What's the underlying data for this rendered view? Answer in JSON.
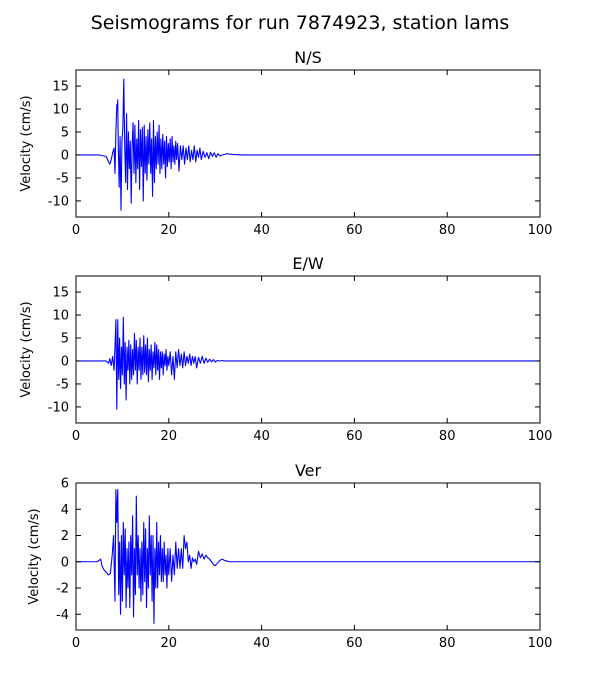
{
  "figure": {
    "title": "Seismograms for run 7874923, station lams"
  },
  "chart_data": [
    {
      "type": "line",
      "title": "N/S",
      "xlabel": "",
      "ylabel": "Velocity (cm/s)",
      "xlim": [
        0,
        100
      ],
      "ylim": [
        -13.5,
        18.5
      ],
      "xticks": [
        0,
        20,
        40,
        60,
        80,
        100
      ],
      "yticks": [
        -10,
        -5,
        0,
        5,
        10,
        15
      ],
      "grid": false,
      "legend": "none",
      "series": [
        {
          "color": "#0000ff",
          "x": [
            0,
            5,
            6.5,
            7,
            7.3,
            7.6,
            7.9,
            8.2,
            8.4,
            8.6,
            8.8,
            8.9,
            9.0,
            9.1,
            9.3,
            9.5,
            9.7,
            9.9,
            10.1,
            10.3,
            10.5,
            10.7,
            10.9,
            11.1,
            11.3,
            11.5,
            11.7,
            11.9,
            12.1,
            12.3,
            12.5,
            12.7,
            12.9,
            13.1,
            13.3,
            13.5,
            13.7,
            13.9,
            14.1,
            14.3,
            14.5,
            14.7,
            14.9,
            15.1,
            15.3,
            15.5,
            15.7,
            15.9,
            16.1,
            16.3,
            16.5,
            16.7,
            16.9,
            17.1,
            17.3,
            17.5,
            17.7,
            17.9,
            18.1,
            18.3,
            18.5,
            18.7,
            18.9,
            19.1,
            19.3,
            19.5,
            19.7,
            19.9,
            20.1,
            20.3,
            20.5,
            20.7,
            20.9,
            21.1,
            21.3,
            21.5,
            21.7,
            21.9,
            22.2,
            22.5,
            22.8,
            23.1,
            23.4,
            23.7,
            24.0,
            24.3,
            24.6,
            24.9,
            25.2,
            25.5,
            25.8,
            26.1,
            26.4,
            26.7,
            27.0,
            27.4,
            27.8,
            28.2,
            28.6,
            29.0,
            29.4,
            29.8,
            30.2,
            30.6,
            31.0,
            31.5,
            32.0,
            32.5,
            33,
            34,
            36,
            38,
            42,
            50,
            100
          ],
          "values": [
            0,
            0,
            -0.3,
            -1.5,
            -2.0,
            -1.0,
            0.5,
            1.5,
            -4.0,
            5.0,
            11.0,
            10.0,
            12.0,
            3.0,
            -7.0,
            4.0,
            -12.0,
            3.0,
            6.0,
            16.5,
            2.0,
            -6.0,
            9.0,
            -7.5,
            5.0,
            -3.0,
            3.0,
            -10.5,
            2.0,
            7.0,
            -4.0,
            6.5,
            -6.0,
            3.5,
            -3.0,
            7.5,
            -7.5,
            5.5,
            -2.5,
            6.0,
            -10.0,
            6.5,
            -4.0,
            4.0,
            -5.5,
            5.5,
            -2.0,
            7.0,
            -4.0,
            3.5,
            -9.0,
            7.5,
            -6.0,
            4.0,
            -3.0,
            5.0,
            -2.0,
            6.5,
            -4.0,
            3.5,
            -3.0,
            4.5,
            -2.0,
            3.0,
            -5.0,
            4.0,
            -2.5,
            2.5,
            -1.5,
            3.5,
            -3.0,
            4.0,
            -1.5,
            2.0,
            -2.0,
            3.0,
            -1.0,
            2.5,
            -3.5,
            2.0,
            -1.0,
            2.0,
            -2.0,
            1.5,
            -1.0,
            2.0,
            -1.5,
            1.0,
            -1.0,
            2.0,
            -1.5,
            1.0,
            -0.5,
            1.5,
            -1.0,
            0.8,
            -0.5,
            0.5,
            -0.8,
            0.6,
            -0.3,
            0.5,
            -0.5,
            0.3,
            -0.2,
            0,
            0.1,
            0.3,
            0.2,
            0.1,
            0,
            0,
            0,
            0,
            0
          ]
        }
      ]
    },
    {
      "type": "line",
      "title": "E/W",
      "xlabel": "",
      "ylabel": "Velocity (cm/s)",
      "xlim": [
        0,
        100
      ],
      "ylim": [
        -13.5,
        18.5
      ],
      "xticks": [
        0,
        20,
        40,
        60,
        80,
        100
      ],
      "yticks": [
        -10,
        -5,
        0,
        5,
        10,
        15
      ],
      "grid": false,
      "legend": "none",
      "series": [
        {
          "color": "#0000ff",
          "x": [
            0,
            6.5,
            7.0,
            7.3,
            7.6,
            7.9,
            8.2,
            8.4,
            8.6,
            8.8,
            9.0,
            9.2,
            9.4,
            9.6,
            9.8,
            10.0,
            10.2,
            10.4,
            10.6,
            10.8,
            11.0,
            11.2,
            11.4,
            11.6,
            11.8,
            12.0,
            12.2,
            12.4,
            12.6,
            12.8,
            13.0,
            13.2,
            13.4,
            13.6,
            13.8,
            14.0,
            14.2,
            14.4,
            14.6,
            14.8,
            15.0,
            15.2,
            15.4,
            15.6,
            15.8,
            16.0,
            16.2,
            16.4,
            16.6,
            16.8,
            17.0,
            17.2,
            17.4,
            17.6,
            17.8,
            18.0,
            18.2,
            18.4,
            18.6,
            18.8,
            19.0,
            19.2,
            19.4,
            19.6,
            19.8,
            20.0,
            20.3,
            20.6,
            20.9,
            21.2,
            21.5,
            21.8,
            22.1,
            22.4,
            22.7,
            23.0,
            23.3,
            23.6,
            23.9,
            24.2,
            24.5,
            24.8,
            25.1,
            25.4,
            25.7,
            26.0,
            26.4,
            26.8,
            27.2,
            27.6,
            28.0,
            28.4,
            28.8,
            29.2,
            29.6,
            30.0,
            30.5,
            31.0,
            31.5,
            32,
            34,
            36,
            40,
            50,
            100
          ],
          "values": [
            0,
            0,
            -0.5,
            0.5,
            -1.0,
            1.0,
            -2.0,
            3.0,
            9.0,
            -10.5,
            9.0,
            -4.0,
            5.0,
            -6.0,
            3.0,
            -3.0,
            9.5,
            -5.0,
            4.0,
            -8.5,
            3.0,
            -2.0,
            4.5,
            -5.0,
            3.5,
            -4.0,
            2.5,
            -3.0,
            6.0,
            -2.0,
            4.5,
            -5.0,
            3.0,
            -2.0,
            5.0,
            -4.0,
            3.0,
            -3.0,
            5.5,
            -2.5,
            3.5,
            -3.0,
            5.0,
            -4.5,
            2.5,
            -2.0,
            3.5,
            -4.0,
            2.0,
            -1.5,
            4.0,
            -3.0,
            3.5,
            -2.0,
            2.5,
            -4.0,
            2.0,
            -1.5,
            2.0,
            -3.0,
            1.5,
            -1.0,
            2.5,
            -2.0,
            1.0,
            -1.0,
            2.0,
            -3.0,
            1.0,
            -4.0,
            2.0,
            -1.5,
            2.5,
            -1.0,
            1.5,
            -1.5,
            2.0,
            -1.0,
            1.0,
            -0.5,
            1.5,
            -1.0,
            1.0,
            -0.5,
            1.0,
            -1.5,
            0.8,
            -0.5,
            1.0,
            -0.5,
            0.6,
            -0.3,
            0.4,
            -0.2,
            0.3,
            -0.2,
            0.1,
            0,
            0.1,
            0,
            0,
            0,
            0,
            0,
            0
          ]
        }
      ]
    },
    {
      "type": "line",
      "title": "Ver",
      "xlabel": "",
      "ylabel": "Velocity (cm/s)",
      "xlim": [
        0,
        100
      ],
      "ylim": [
        -5.2,
        6
      ],
      "xticks": [
        0,
        20,
        40,
        60,
        80,
        100
      ],
      "yticks": [
        -4,
        -2,
        0,
        2,
        4,
        6
      ],
      "grid": false,
      "legend": "none",
      "series": [
        {
          "color": "#0000ff",
          "x": [
            0,
            4.5,
            5.0,
            5.3,
            5.6,
            6.0,
            6.5,
            7.0,
            7.4,
            7.8,
            8.1,
            8.4,
            8.6,
            8.8,
            9.0,
            9.2,
            9.4,
            9.6,
            9.8,
            10.0,
            10.2,
            10.4,
            10.6,
            10.8,
            11.0,
            11.2,
            11.4,
            11.6,
            11.8,
            12.0,
            12.2,
            12.4,
            12.6,
            12.8,
            13.0,
            13.2,
            13.4,
            13.6,
            13.8,
            14.0,
            14.2,
            14.4,
            14.6,
            14.8,
            15.0,
            15.2,
            15.4,
            15.6,
            15.8,
            16.0,
            16.2,
            16.4,
            16.6,
            16.8,
            17.0,
            17.2,
            17.4,
            17.6,
            17.8,
            18.0,
            18.2,
            18.4,
            18.6,
            18.8,
            19.0,
            19.2,
            19.4,
            19.6,
            19.8,
            20.0,
            20.3,
            20.6,
            20.9,
            21.2,
            21.5,
            21.8,
            22.1,
            22.4,
            22.7,
            23.0,
            23.3,
            23.6,
            23.9,
            24.2,
            24.5,
            24.8,
            25.1,
            25.4,
            25.7,
            26.0,
            26.4,
            26.8,
            27.2,
            27.6,
            28.0,
            28.4,
            28.8,
            29.2,
            29.6,
            30.0,
            30.5,
            31.0,
            31.5,
            32.0,
            32.5,
            33.0,
            33.5,
            34.0,
            35,
            37,
            40,
            50,
            100
          ],
          "values": [
            0,
            0,
            0.1,
            0.2,
            -0.3,
            -0.6,
            -0.8,
            -1.0,
            -0.9,
            0.5,
            2.0,
            -3.0,
            5.5,
            3.0,
            5.5,
            -2.5,
            1.5,
            -4.0,
            2.0,
            -3.0,
            3.0,
            -1.0,
            2.5,
            -3.5,
            1.0,
            -2.0,
            1.5,
            -3.5,
            2.0,
            -1.0,
            3.5,
            -4.2,
            1.0,
            -2.5,
            5.0,
            -1.0,
            2.0,
            -2.0,
            1.0,
            -3.0,
            1.5,
            -2.5,
            3.0,
            -1.5,
            2.5,
            -3.5,
            1.0,
            -2.0,
            3.5,
            -1.0,
            2.0,
            -3.0,
            2.0,
            -4.7,
            1.0,
            -2.0,
            3.0,
            -2.0,
            1.5,
            -1.0,
            2.0,
            -1.5,
            1.0,
            -1.5,
            1.5,
            -1.0,
            0.5,
            -2.0,
            1.0,
            -1.0,
            1.0,
            -1.5,
            0.5,
            -1.0,
            1.5,
            -0.5,
            1.0,
            -0.5,
            1.0,
            -0.5,
            2.0,
            1.0,
            1.5,
            0,
            0.5,
            -0.5,
            0.3,
            0,
            0.2,
            -0.2,
            0.8,
            0.3,
            0.6,
            0.2,
            0.5,
            0.3,
            0.2,
            0,
            -0.2,
            -0.3,
            -0.1,
            0.1,
            0.2,
            0.1,
            0.05,
            0,
            0,
            0,
            0,
            0,
            0,
            0,
            0
          ]
        }
      ]
    }
  ]
}
